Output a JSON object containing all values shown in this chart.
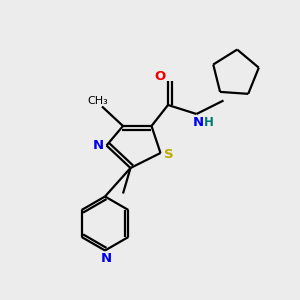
{
  "background_color": "#ececec",
  "atom_colors": {
    "C": "#000000",
    "N": "#0000ee",
    "O": "#ee0000",
    "S": "#bbaa00",
    "H": "#007777"
  },
  "figsize": [
    3.0,
    3.0
  ],
  "dpi": 100,
  "lw": 1.6
}
